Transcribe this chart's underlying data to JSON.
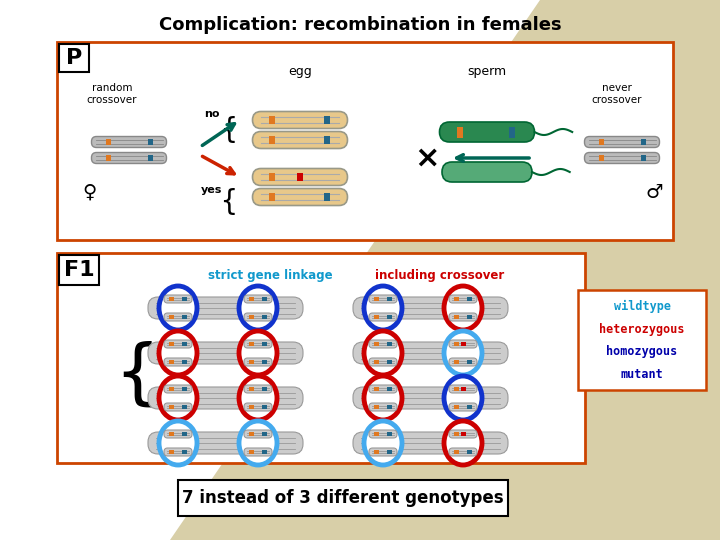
{
  "title": "Complication: recombination in females",
  "title_fontsize": 13,
  "background_color": "#ffffff",
  "triangle_color": "#d8cfa8",
  "box_edge_color": "#cc4400",
  "legend_lines": [
    "wildtype",
    "heterozygous",
    "homozygous",
    "mutant"
  ],
  "legend_colors": [
    "#1199cc",
    "#cc0000",
    "#0000aa",
    "#0000aa"
  ],
  "bottom_text": "7 instead of 3 different genotypes",
  "p_label": "P",
  "f1_label": "F1",
  "egg_label": "egg",
  "sperm_label": "sperm",
  "no_label": "no",
  "yes_label": "yes",
  "random_crossover": "random\ncrossover",
  "never_crossover": "never\ncrossover",
  "strict_label": "strict gene linkage",
  "crossover_label": "including crossover",
  "egg_fill": "#e8c88a",
  "sperm_fill": "#2a8850",
  "chrom_gray": "#bbbbbb",
  "chrom_light": "#dddddd",
  "orange_locus": "#e07820",
  "blue_locus": "#2266aa",
  "teal_locus": "#226688",
  "red_mark": "#cc0000"
}
